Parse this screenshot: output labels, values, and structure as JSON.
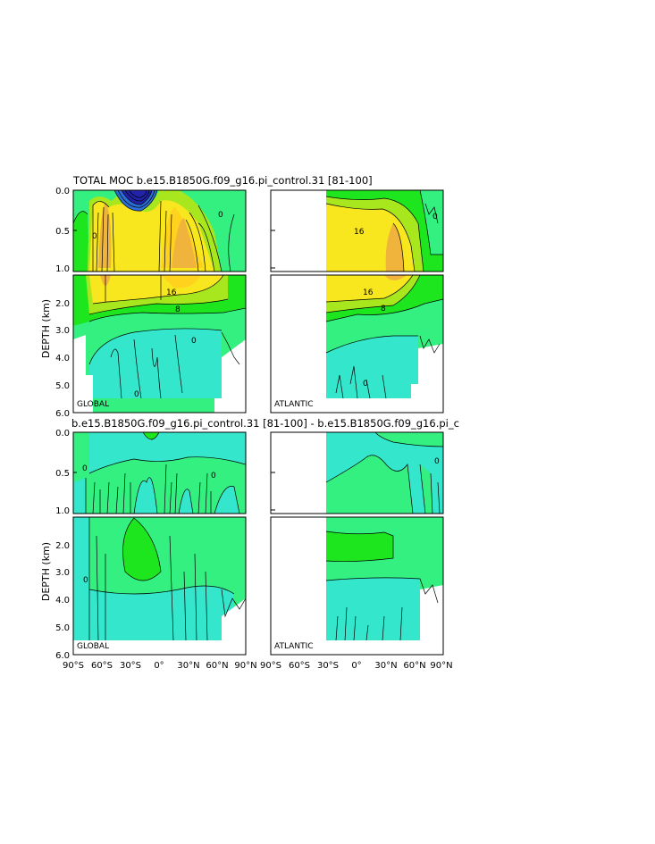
{
  "colors": {
    "cyan": "#33e6cc",
    "green1": "#33f080",
    "green2": "#1ee61e",
    "yellowgreen": "#a8e61e",
    "yellow": "#f8e61e",
    "gold": "#ffd21e",
    "orange": "#f0b43c",
    "blue": "#2222aa",
    "frame": "#000000"
  },
  "chart_data": [
    {
      "type": "heatmap",
      "subtype": "contour",
      "panel": "GLOBAL",
      "title": "TOTAL MOC b.e15.B1850G.f09_g16.pi_control.31 [81-100]",
      "ylabel": "DEPTH (km)",
      "x_range": [
        -90,
        90
      ],
      "y_range_top": [
        0.0,
        1.0
      ],
      "y_range_bottom": [
        1.0,
        6.0
      ],
      "y_ticks_top": [
        "0.0",
        "0.5",
        "1.0"
      ],
      "y_ticks_bottom": [
        "2.0",
        "3.0",
        "4.0",
        "5.0",
        "6.0"
      ],
      "contour_labels": [
        "16",
        "8",
        "0"
      ]
    },
    {
      "type": "heatmap",
      "subtype": "contour",
      "panel": "ATLANTIC",
      "x_range": [
        -90,
        90
      ],
      "y_range_top": [
        0.0,
        1.0
      ],
      "y_range_bottom": [
        1.0,
        6.0
      ],
      "contour_labels": [
        "16",
        "16",
        "8",
        "0"
      ]
    },
    {
      "type": "heatmap",
      "subtype": "contour",
      "panel": "GLOBAL",
      "title": "b.e15.B1850G.f09_g16.pi_control.31 [81-100] - b.e15.B1850G.f09_g16.pi_c",
      "ylabel": "DEPTH (km)",
      "x_range": [
        -90,
        90
      ],
      "y_ticks_top": [
        "0.0",
        "0.5",
        "1.0"
      ],
      "y_ticks_bottom": [
        "2.0",
        "3.0",
        "4.0",
        "5.0",
        "6.0"
      ],
      "x_ticks": [
        "90°S",
        "60°S",
        "30°S",
        "0°",
        "30°N",
        "60°N",
        "90°N"
      ],
      "contour_labels": [
        "0"
      ]
    },
    {
      "type": "heatmap",
      "subtype": "contour",
      "panel": "ATLANTIC",
      "x_range": [
        -90,
        90
      ],
      "x_ticks": [
        "90°S",
        "60°S",
        "30°S",
        "0°",
        "30°N",
        "60°N",
        "90°N"
      ],
      "contour_labels": [
        "0"
      ]
    }
  ],
  "texts": {
    "title_top": "TOTAL MOC b.e15.B1850G.f09_g16.pi_control.31 [81-100]",
    "title_diff": "b.e15.B1850G.f09_g16.pi_control.31 [81-100] - b.e15.B1850G.f09_g16.pi_c",
    "ylabel": "DEPTH (km)",
    "global": "GLOBAL",
    "atlantic": "ATLANTIC"
  }
}
